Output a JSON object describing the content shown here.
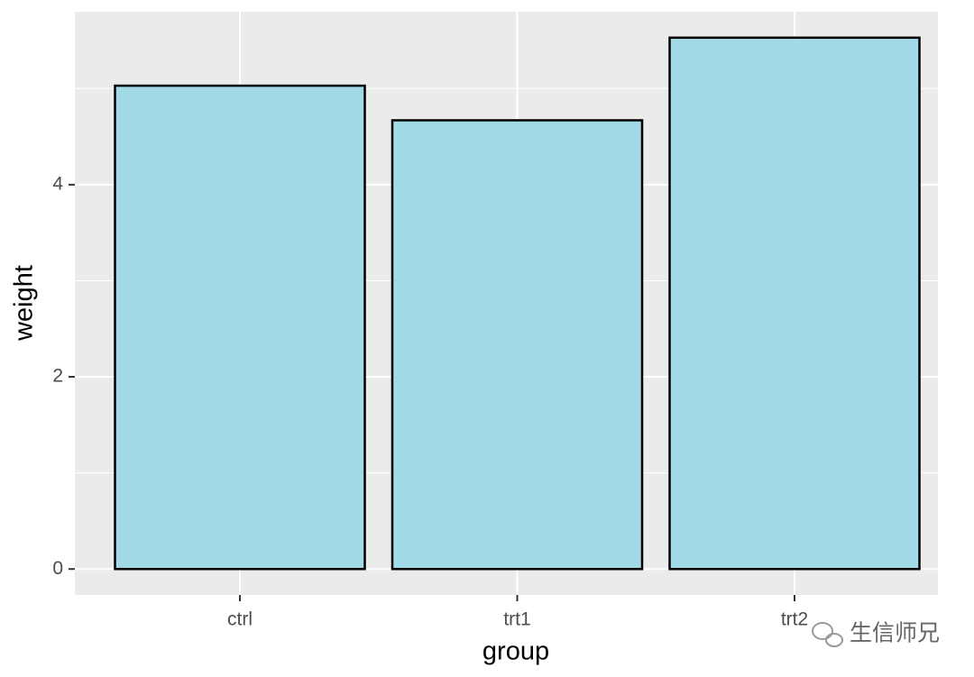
{
  "chart_data": {
    "type": "bar",
    "x_label": "group",
    "y_label": "weight",
    "categories": [
      "ctrl",
      "trt1",
      "trt2"
    ],
    "values": [
      5.03,
      4.67,
      5.53
    ],
    "color": "#a3dae7",
    "edge_color": "#000000",
    "ylim": [
      -0.27,
      5.8
    ],
    "yticks": [
      0,
      2,
      4
    ],
    "y_minor_grid": [
      1,
      3,
      5
    ],
    "grid": true,
    "watermark": "生信师兄"
  }
}
